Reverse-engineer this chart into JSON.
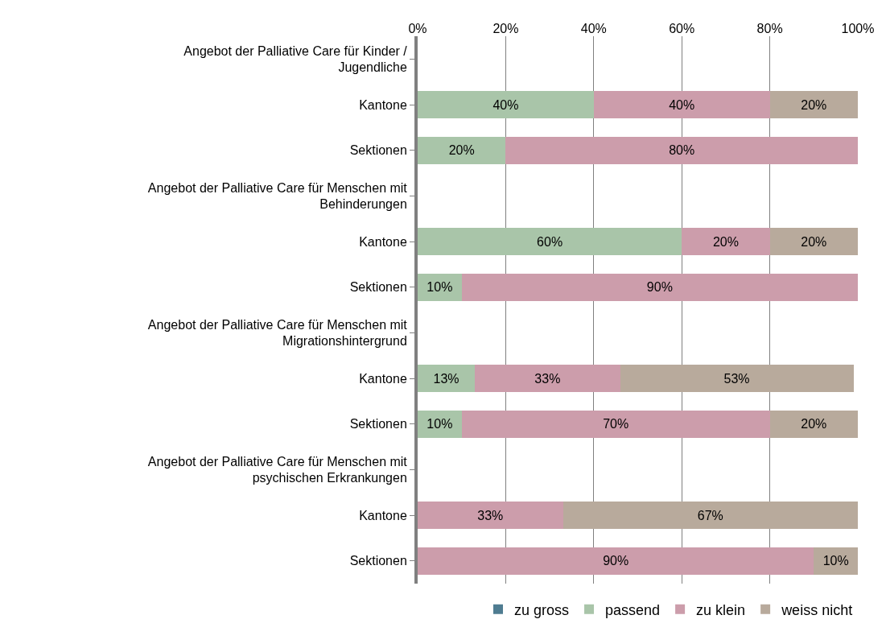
{
  "chart_data": {
    "type": "bar",
    "orientation": "horizontal",
    "stacked": true,
    "categories": [
      "Angebot der Palliative Care für Kinder / Jugendliche",
      "Kantone",
      "Sektionen",
      "Angebot der Palliative Care für Menschen mit Behinderungen",
      "Kantone",
      "Sektionen",
      "Angebot der Palliative Care für Menschen mit Migrationshintergrund",
      "Kantone",
      "Sektionen",
      "Angebot der Palliative Care für Menschen mit psychischen Erkrankungen",
      "Kantone",
      "Sektionen"
    ],
    "series": [
      {
        "name": "zu gross",
        "color": "#4f7c91",
        "values": [
          null,
          null,
          null,
          null,
          null,
          null,
          null,
          null,
          null,
          null,
          null,
          null
        ]
      },
      {
        "name": "passend",
        "color": "#a9c5a9",
        "values": [
          null,
          40,
          20,
          null,
          60,
          10,
          null,
          13,
          10,
          null,
          null,
          null
        ],
        "value_labels": [
          null,
          "40%",
          "20%",
          null,
          "60%",
          "10%",
          null,
          "13%",
          "10%",
          null,
          null,
          null
        ]
      },
      {
        "name": "zu klein",
        "color": "#cc9dab",
        "values": [
          null,
          40,
          80,
          null,
          20,
          90,
          null,
          33,
          70,
          null,
          33,
          90
        ],
        "value_labels": [
          null,
          "40%",
          "80%",
          null,
          "20%",
          "90%",
          null,
          "33%",
          "70%",
          null,
          "33%",
          "90%"
        ]
      },
      {
        "name": "weiss nicht",
        "color": "#b8aa9c",
        "values": [
          null,
          20,
          null,
          null,
          20,
          null,
          null,
          53,
          20,
          null,
          67,
          10
        ],
        "value_labels": [
          null,
          "20%",
          null,
          null,
          "20%",
          null,
          null,
          "53%",
          "20%",
          null,
          "67%",
          "10%"
        ]
      }
    ],
    "xlim": [
      0,
      100
    ],
    "xticks": [
      {
        "value": 0,
        "label": "0%"
      },
      {
        "value": 20,
        "label": "20%"
      },
      {
        "value": 40,
        "label": "40%"
      },
      {
        "value": 60,
        "label": "60%"
      },
      {
        "value": 80,
        "label": "80%"
      },
      {
        "value": 100,
        "label": "100%"
      }
    ],
    "grid": "x",
    "legend": "bottom"
  }
}
